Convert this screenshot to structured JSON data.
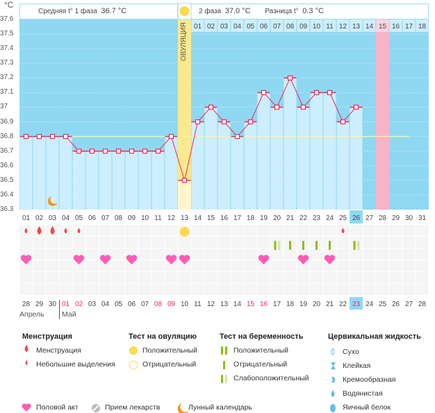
{
  "y_unit": "°C",
  "header": {
    "phase1_label": "Средняя t° 1 фаза",
    "phase1_value": "36.7 °C",
    "phase2_label": "2 фаза",
    "phase2_value": "37.0 °C",
    "diff_label": "Разница t°",
    "diff_value": "0.3 °C",
    "ovulation_label": "ОВУЛЯЦИЯ"
  },
  "colors": {
    "bg": "#8fd8f2",
    "bar": "#cdeefc",
    "line": "#f0285a",
    "ovulation": "#fbe98f",
    "pink": "#f9b3c6",
    "coverline": "#fff29a"
  },
  "chart_data": {
    "type": "line",
    "title": "",
    "ylabel": "°C",
    "ylim": [
      36.3,
      37.6
    ],
    "yticks": [
      "37.6",
      "37.5",
      "37.4",
      "37.3",
      "37.2",
      "37.1",
      "37",
      "36.9",
      "36.8",
      "36.7",
      "36.6",
      "36.5",
      "36.4",
      "36.3"
    ],
    "cycle_days": [
      "01",
      "02",
      "03",
      "04",
      "05",
      "06",
      "07",
      "08",
      "09",
      "10",
      "11",
      "12",
      "13",
      "14",
      "15",
      "16",
      "17",
      "18",
      "19",
      "20",
      "21",
      "22",
      "23",
      "24",
      "25",
      "26",
      "27",
      "28",
      "29",
      "30",
      "31"
    ],
    "phase2_days": [
      "01",
      "02",
      "03",
      "04",
      "05",
      "06",
      "07",
      "08",
      "09",
      "10",
      "11",
      "12",
      "13",
      "14",
      "15",
      "16",
      "17",
      "18"
    ],
    "temperatures": [
      36.8,
      36.8,
      36.8,
      36.8,
      36.7,
      36.7,
      36.7,
      36.7,
      36.7,
      36.7,
      36.7,
      36.8,
      36.5,
      36.9,
      37.0,
      36.9,
      36.8,
      36.9,
      37.1,
      37.0,
      37.2,
      37.0,
      37.1,
      37.1,
      36.9,
      37.0
    ],
    "coverline": 36.8,
    "ovulation_day": 13,
    "today_day": 26,
    "expected_period_day": 28
  },
  "calendar_dates": [
    "28",
    "29",
    "30",
    "01",
    "02",
    "03",
    "04",
    "05",
    "06",
    "07",
    "08",
    "09",
    "10",
    "11",
    "12",
    "13",
    "14",
    "15",
    "16",
    "17",
    "18",
    "19",
    "20",
    "21",
    "22",
    "23",
    "24",
    "25",
    "26",
    "27",
    "28"
  ],
  "calendar_red": [
    4,
    5,
    11,
    12,
    18,
    19,
    26
  ],
  "months": [
    "Апрель",
    "Май"
  ],
  "events": {
    "menstruation": [
      [
        1,
        "small"
      ],
      [
        2,
        "big"
      ],
      [
        3,
        "big"
      ],
      [
        4,
        "small"
      ],
      [
        5,
        "small"
      ],
      [
        25,
        "small"
      ]
    ],
    "ovulation_test_positive": [
      13
    ],
    "pregnancy_test": [
      [
        20,
        "weak"
      ],
      [
        21,
        "neg"
      ],
      [
        22,
        "neg"
      ],
      [
        23,
        "neg"
      ],
      [
        24,
        "neg"
      ],
      [
        26,
        "weak"
      ]
    ],
    "intercourse": [
      1,
      5,
      7,
      9,
      12,
      13,
      19,
      22,
      24
    ],
    "moon": [
      3
    ]
  },
  "legend": {
    "menstruation": {
      "title": "Менструация",
      "items": [
        "Менструация",
        "Небольшие выделения"
      ]
    },
    "ovulation_test": {
      "title": "Тест на овуляцию",
      "items": [
        "Положительный",
        "Отрицательный"
      ]
    },
    "pregnancy_test": {
      "title": "Тест на беременность",
      "items": [
        "Положительный",
        "Отрицательный",
        "Слабоположительный"
      ]
    },
    "cervical": {
      "title": "Цервикальная жидкость",
      "items": [
        "Сухо",
        "Клейкая",
        "Кремообразная",
        "Водянистая",
        "Яичный белок"
      ]
    },
    "other": [
      "Половой акт",
      "Прием лекарств",
      "Лунный календарь"
    ]
  }
}
